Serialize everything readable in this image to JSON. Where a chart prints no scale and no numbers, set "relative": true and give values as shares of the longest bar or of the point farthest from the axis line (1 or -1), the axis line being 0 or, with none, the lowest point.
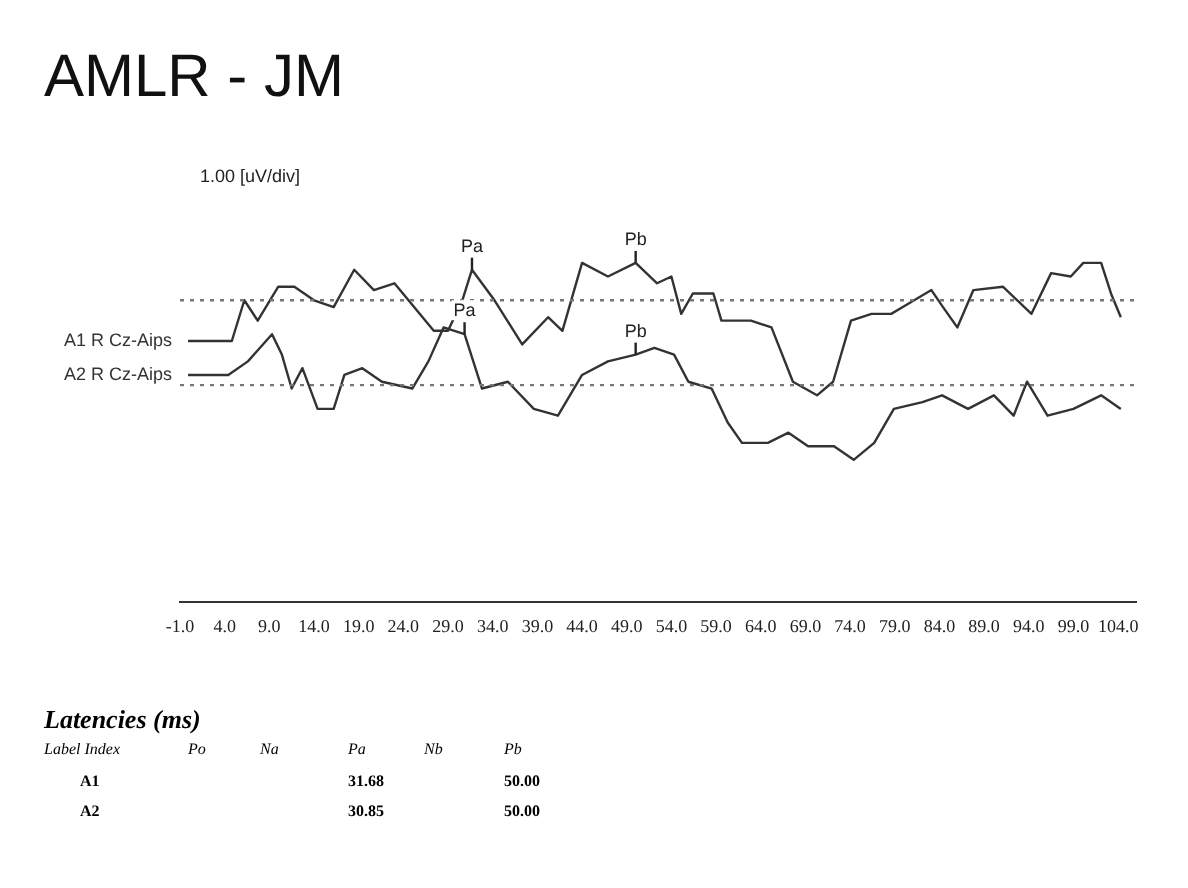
{
  "chart_data": {
    "type": "line",
    "title": "AMLR - JM",
    "relative": true,
    "xlim": [
      -1,
      106
    ],
    "xticks": [
      {
        "value": -1,
        "label": "-1.0"
      },
      {
        "value": 4,
        "label": "4.0"
      },
      {
        "value": 9,
        "label": "9.0"
      },
      {
        "value": 14,
        "label": "14.0"
      },
      {
        "value": 19,
        "label": "19.0"
      },
      {
        "value": 24,
        "label": "24.0"
      },
      {
        "value": 29,
        "label": "29.0"
      },
      {
        "value": 34,
        "label": "34.0"
      },
      {
        "value": 39,
        "label": "39.0"
      },
      {
        "value": 44,
        "label": "44.0"
      },
      {
        "value": 49,
        "label": "49.0"
      },
      {
        "value": 54,
        "label": "54.0"
      },
      {
        "value": 59,
        "label": "59.0"
      },
      {
        "value": 64,
        "label": "64.0"
      },
      {
        "value": 69,
        "label": "69.0"
      },
      {
        "value": 74,
        "label": "74.0"
      },
      {
        "value": 79,
        "label": "79.0"
      },
      {
        "value": 84,
        "label": "84.0"
      },
      {
        "value": 89,
        "label": "89.0"
      },
      {
        "value": 94,
        "label": "94.0"
      },
      {
        "value": 99,
        "label": "99.0"
      },
      {
        "value": 104,
        "label": "104.0"
      }
    ],
    "grid": false,
    "legend": false,
    "marker": "none",
    "line_style": "solid",
    "series": [
      {
        "name": "A1 R Cz-Aips",
        "color": "#333333",
        "x": [
          -0.1,
          4.8,
          6.2,
          7.7,
          10.0,
          11.8,
          14.0,
          16.2,
          18.5,
          20.7,
          23.0,
          25.2,
          27.4,
          29.0,
          30.6,
          31.68,
          34.2,
          37.3,
          40.2,
          41.8,
          44.0,
          46.9,
          50.0,
          52.4,
          54.0,
          55.1,
          56.4,
          58.7,
          59.6,
          62.9,
          65.2,
          67.6,
          70.3,
          72.1,
          74.1,
          76.4,
          78.6,
          79.9,
          83.1,
          84.4,
          86.0,
          87.8,
          91.1,
          94.3,
          96.5,
          98.7,
          100.1,
          102.1,
          103.2,
          104.3
        ],
        "values": [
          0.77,
          0.77,
          0.89,
          0.83,
          0.93,
          0.93,
          0.89,
          0.87,
          0.98,
          0.92,
          0.94,
          0.87,
          0.8,
          0.8,
          0.89,
          0.98,
          0.89,
          0.76,
          0.84,
          0.8,
          1.0,
          0.96,
          1.0,
          0.94,
          0.96,
          0.85,
          0.91,
          0.91,
          0.83,
          0.83,
          0.81,
          0.65,
          0.61,
          0.65,
          0.83,
          0.85,
          0.85,
          0.87,
          0.92,
          0.87,
          0.81,
          0.92,
          0.93,
          0.85,
          0.97,
          0.96,
          1.0,
          1.0,
          0.91,
          0.84
        ]
      },
      {
        "name": "A2 R Cz-Aips",
        "color": "#333333",
        "x": [
          -0.1,
          4.4,
          6.6,
          9.3,
          10.4,
          11.5,
          12.7,
          14.4,
          16.2,
          17.4,
          19.4,
          21.6,
          25.0,
          26.8,
          28.5,
          30.85,
          32.8,
          35.7,
          38.6,
          41.3,
          44.0,
          46.9,
          50.0,
          52.1,
          54.3,
          55.9,
          58.5,
          60.3,
          61.9,
          64.8,
          67.1,
          69.3,
          72.2,
          74.4,
          76.7,
          78.9,
          82.1,
          84.3,
          87.2,
          90.1,
          92.3,
          93.8,
          96.1,
          99.0,
          102.1,
          104.3
        ],
        "values": [
          0.67,
          0.67,
          0.71,
          0.79,
          0.73,
          0.63,
          0.69,
          0.57,
          0.57,
          0.67,
          0.69,
          0.65,
          0.63,
          0.71,
          0.81,
          0.79,
          0.63,
          0.65,
          0.57,
          0.55,
          0.67,
          0.71,
          0.73,
          0.75,
          0.73,
          0.65,
          0.63,
          0.53,
          0.47,
          0.47,
          0.5,
          0.46,
          0.46,
          0.42,
          0.47,
          0.57,
          0.59,
          0.61,
          0.57,
          0.61,
          0.55,
          0.65,
          0.55,
          0.57,
          0.61,
          0.57
        ]
      }
    ],
    "ref_lines": [
      {
        "axis": "y",
        "value": 0.89,
        "color": "#777777",
        "line_style": "dotted"
      },
      {
        "axis": "y",
        "value": 0.64,
        "color": "#777777",
        "line_style": "dotted"
      }
    ],
    "annotations": [
      "1.00 [uV/div]",
      {
        "text": "Pa",
        "x": 31.68,
        "y": 0.98
      },
      {
        "text": "Pa",
        "x": 30.85,
        "y": 0.79
      },
      {
        "text": "Pb",
        "x": 50.0,
        "y": 1.0
      },
      {
        "text": "Pb",
        "x": 50.0,
        "y": 0.73
      },
      "Latencies (ms)",
      "Label Index",
      "Po",
      "Na",
      "Pa",
      "Nb",
      "Pb",
      "A1",
      "31.68",
      "50.00",
      "A2",
      "30.85",
      "50.00"
    ]
  }
}
